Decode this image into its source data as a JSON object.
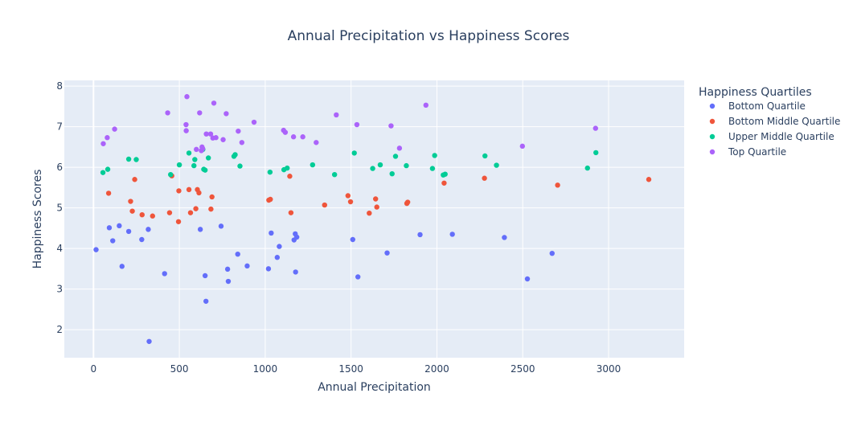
{
  "chart_data": {
    "type": "scatter",
    "title": "Annual Precipitation vs Happiness Scores",
    "xlabel": "Annual Precipitation",
    "ylabel": "Happiness Scores",
    "xlim": [
      -170,
      3440
    ],
    "ylim": [
      1.31,
      8.14
    ],
    "xticks": [
      0,
      500,
      1000,
      1500,
      2000,
      2500,
      3000
    ],
    "yticks": [
      2,
      3,
      4,
      5,
      6,
      7,
      8
    ],
    "grid": true,
    "legend_title": "Happiness Quartiles",
    "legend_position": "right",
    "series": [
      {
        "name": "Bottom Quartile",
        "color": "#636efa",
        "points": [
          [
            15,
            3.97
          ],
          [
            92,
            4.51
          ],
          [
            112,
            4.19
          ],
          [
            150,
            4.56
          ],
          [
            166,
            3.56
          ],
          [
            205,
            4.42
          ],
          [
            281,
            4.22
          ],
          [
            319,
            4.47
          ],
          [
            324,
            1.71
          ],
          [
            414,
            3.38
          ],
          [
            622,
            4.47
          ],
          [
            650,
            3.33
          ],
          [
            655,
            2.7
          ],
          [
            743,
            4.55
          ],
          [
            781,
            3.49
          ],
          [
            785,
            3.19
          ],
          [
            840,
            3.86
          ],
          [
            895,
            3.57
          ],
          [
            1019,
            3.5
          ],
          [
            1035,
            4.38
          ],
          [
            1070,
            3.78
          ],
          [
            1082,
            4.05
          ],
          [
            1168,
            4.21
          ],
          [
            1175,
            4.36
          ],
          [
            1177,
            3.42
          ],
          [
            1184,
            4.28
          ],
          [
            1510,
            4.22
          ],
          [
            1540,
            3.3
          ],
          [
            1710,
            3.89
          ],
          [
            1902,
            4.34
          ],
          [
            2090,
            4.35
          ],
          [
            2393,
            4.27
          ],
          [
            2527,
            3.25
          ],
          [
            2671,
            3.88
          ]
        ]
      },
      {
        "name": "Bottom Middle Quartile",
        "color": "#ef553b",
        "points": [
          [
            88,
            5.36
          ],
          [
            216,
            5.16
          ],
          [
            226,
            4.92
          ],
          [
            240,
            5.7
          ],
          [
            283,
            4.83
          ],
          [
            344,
            4.8
          ],
          [
            443,
            4.88
          ],
          [
            456,
            5.79
          ],
          [
            495,
            4.66
          ],
          [
            497,
            5.42
          ],
          [
            556,
            5.45
          ],
          [
            565,
            4.88
          ],
          [
            596,
            4.98
          ],
          [
            605,
            5.45
          ],
          [
            614,
            5.37
          ],
          [
            684,
            4.97
          ],
          [
            690,
            5.27
          ],
          [
            1021,
            5.19
          ],
          [
            1030,
            5.21
          ],
          [
            1143,
            5.78
          ],
          [
            1150,
            4.88
          ],
          [
            1346,
            5.07
          ],
          [
            1482,
            5.3
          ],
          [
            1497,
            5.15
          ],
          [
            1606,
            4.87
          ],
          [
            1643,
            5.22
          ],
          [
            1650,
            5.02
          ],
          [
            1825,
            5.11
          ],
          [
            1830,
            5.14
          ],
          [
            2042,
            5.61
          ],
          [
            2277,
            5.73
          ],
          [
            2703,
            5.56
          ],
          [
            3234,
            5.7
          ]
        ]
      },
      {
        "name": "Upper Middle Quartile",
        "color": "#00cc96",
        "points": [
          [
            55,
            5.87
          ],
          [
            83,
            5.95
          ],
          [
            205,
            6.2
          ],
          [
            249,
            6.19
          ],
          [
            449,
            5.82
          ],
          [
            500,
            6.06
          ],
          [
            556,
            6.35
          ],
          [
            585,
            6.04
          ],
          [
            590,
            6.19
          ],
          [
            637,
            6.44
          ],
          [
            642,
            5.95
          ],
          [
            650,
            5.93
          ],
          [
            669,
            6.23
          ],
          [
            818,
            6.27
          ],
          [
            825,
            6.31
          ],
          [
            853,
            6.03
          ],
          [
            1028,
            5.88
          ],
          [
            1109,
            5.94
          ],
          [
            1128,
            5.98
          ],
          [
            1276,
            6.06
          ],
          [
            1404,
            5.82
          ],
          [
            1519,
            6.35
          ],
          [
            1626,
            5.97
          ],
          [
            1670,
            6.06
          ],
          [
            1739,
            5.84
          ],
          [
            1759,
            6.27
          ],
          [
            1822,
            6.04
          ],
          [
            1974,
            5.97
          ],
          [
            1987,
            6.29
          ],
          [
            2037,
            5.81
          ],
          [
            2048,
            5.83
          ],
          [
            2280,
            6.28
          ],
          [
            2347,
            6.05
          ],
          [
            2877,
            5.98
          ],
          [
            2926,
            6.36
          ]
        ]
      },
      {
        "name": "Top Quartile",
        "color": "#ab63fa",
        "points": [
          [
            57,
            6.58
          ],
          [
            80,
            6.73
          ],
          [
            123,
            6.94
          ],
          [
            432,
            7.34
          ],
          [
            539,
            7.05
          ],
          [
            540,
            6.9
          ],
          [
            544,
            7.74
          ],
          [
            599,
            6.44
          ],
          [
            618,
            7.34
          ],
          [
            628,
            6.41
          ],
          [
            632,
            6.5
          ],
          [
            636,
            6.46
          ],
          [
            657,
            6.82
          ],
          [
            682,
            6.82
          ],
          [
            695,
            6.72
          ],
          [
            701,
            7.58
          ],
          [
            713,
            6.73
          ],
          [
            755,
            6.68
          ],
          [
            773,
            7.32
          ],
          [
            843,
            6.89
          ],
          [
            864,
            6.61
          ],
          [
            935,
            7.11
          ],
          [
            1107,
            6.91
          ],
          [
            1117,
            6.86
          ],
          [
            1165,
            6.75
          ],
          [
            1219,
            6.75
          ],
          [
            1297,
            6.61
          ],
          [
            1414,
            7.29
          ],
          [
            1534,
            7.05
          ],
          [
            1733,
            7.02
          ],
          [
            1782,
            6.47
          ],
          [
            1936,
            7.53
          ],
          [
            2498,
            6.52
          ],
          [
            2924,
            6.96
          ]
        ]
      }
    ]
  }
}
